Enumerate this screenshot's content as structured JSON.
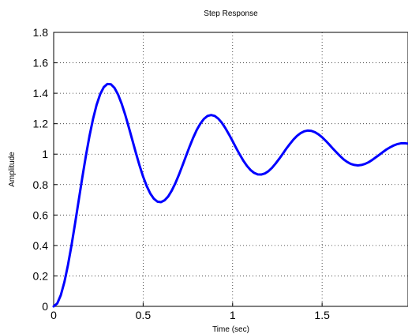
{
  "chart_data": {
    "type": "line",
    "title": "Step Response",
    "xlabel": "Time  (sec)",
    "ylabel": "Amplitude",
    "xlim": [
      0,
      1.98
    ],
    "ylim": [
      0,
      1.8
    ],
    "x_ticks": [
      0,
      0.5,
      1,
      1.5
    ],
    "x_tick_labels": [
      "0",
      "0.5",
      "1",
      "1.5"
    ],
    "y_ticks": [
      0,
      0.2,
      0.4,
      0.6,
      0.8,
      1,
      1.2,
      1.4,
      1.6,
      1.8
    ],
    "y_tick_labels": [
      "0",
      "0.2",
      "0.4",
      "0.6",
      "0.8",
      "1",
      "1.2",
      "1.4",
      "1.6",
      "1.8"
    ],
    "grid": true,
    "series": [
      {
        "color": "#0000ff",
        "x": [
          0,
          0.02,
          0.04,
          0.06,
          0.08,
          0.1,
          0.12,
          0.14,
          0.16,
          0.18,
          0.2,
          0.22,
          0.24,
          0.26,
          0.28,
          0.3,
          0.32,
          0.34,
          0.36,
          0.38,
          0.4,
          0.42,
          0.44,
          0.46,
          0.48,
          0.5,
          0.52,
          0.54,
          0.56,
          0.58,
          0.6,
          0.62,
          0.64,
          0.66,
          0.68,
          0.7,
          0.72,
          0.74,
          0.76,
          0.78,
          0.8,
          0.82,
          0.84,
          0.86,
          0.88,
          0.9,
          0.92,
          0.94,
          0.96,
          0.98,
          1.0,
          1.02,
          1.04,
          1.06,
          1.08,
          1.1,
          1.12,
          1.14,
          1.16,
          1.18,
          1.2,
          1.22,
          1.24,
          1.26,
          1.28,
          1.3,
          1.32,
          1.34,
          1.36,
          1.38,
          1.4,
          1.42,
          1.44,
          1.46,
          1.48,
          1.5,
          1.52,
          1.54,
          1.56,
          1.58,
          1.6,
          1.62,
          1.64,
          1.66,
          1.68,
          1.7,
          1.72,
          1.74,
          1.76,
          1.78,
          1.8,
          1.82,
          1.84,
          1.86,
          1.88,
          1.9,
          1.92,
          1.94,
          1.96,
          1.98
        ],
        "values": [
          0,
          0.019,
          0.074,
          0.16,
          0.272,
          0.403,
          0.547,
          0.697,
          0.846,
          0.988,
          1.118,
          1.231,
          1.324,
          1.394,
          1.44,
          1.461,
          1.459,
          1.435,
          1.391,
          1.331,
          1.258,
          1.176,
          1.091,
          1.006,
          0.925,
          0.852,
          0.79,
          0.741,
          0.707,
          0.688,
          0.685,
          0.697,
          0.722,
          0.761,
          0.809,
          0.865,
          0.926,
          0.989,
          1.051,
          1.109,
          1.16,
          1.201,
          1.232,
          1.251,
          1.257,
          1.251,
          1.233,
          1.206,
          1.17,
          1.129,
          1.085,
          1.04,
          0.997,
          0.957,
          0.923,
          0.896,
          0.877,
          0.867,
          0.866,
          0.873,
          0.888,
          0.91,
          0.938,
          0.969,
          1.002,
          1.036,
          1.067,
          1.096,
          1.12,
          1.138,
          1.15,
          1.155,
          1.153,
          1.144,
          1.13,
          1.111,
          1.088,
          1.063,
          1.037,
          1.012,
          0.988,
          0.966,
          0.949,
          0.936,
          0.929,
          0.926,
          0.929,
          0.936,
          0.947,
          0.962,
          0.979,
          0.996,
          1.014,
          1.031,
          1.045,
          1.057,
          1.066,
          1.071,
          1.072,
          1.069
        ]
      }
    ]
  }
}
